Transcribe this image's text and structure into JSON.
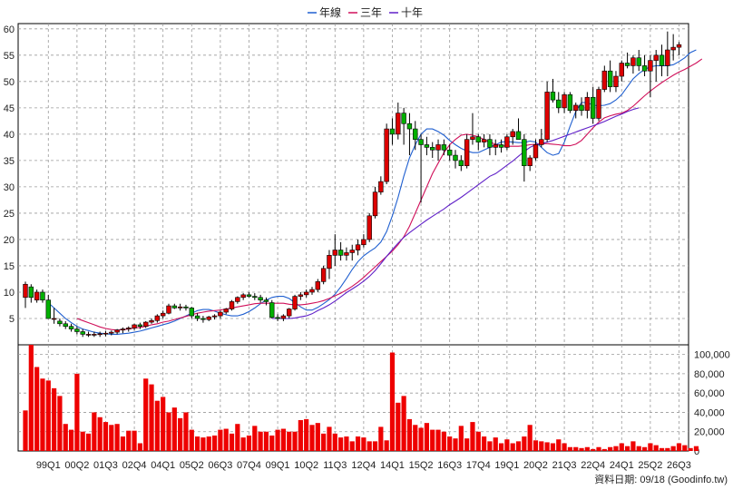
{
  "legend": {
    "items": [
      {
        "label": "年線",
        "color": "#1f5fd0"
      },
      {
        "label": "三年",
        "color": "#d0105a"
      },
      {
        "label": "十年",
        "color": "#6020c8"
      }
    ]
  },
  "footer": {
    "source_label": "資料日期: 09/18 (Goodinfo.tw)"
  },
  "colors": {
    "up": "#dd0000",
    "down": "#00b000",
    "volume": "#ee0000",
    "grid": "#9a9a9a"
  },
  "chart_data": [
    {
      "type": "candlestick",
      "title": "",
      "ylim": [
        0,
        61
      ],
      "y_ticks": [
        5,
        10,
        15,
        20,
        25,
        30,
        35,
        40,
        45,
        50,
        55,
        60
      ],
      "x_tick_labels": [
        "99Q1",
        "00Q2",
        "01Q3",
        "02Q4",
        "04Q1",
        "05Q2",
        "06Q3",
        "07Q4",
        "09Q1",
        "10Q2",
        "11Q3",
        "12Q4",
        "14Q1",
        "15Q2",
        "16Q3",
        "17Q4",
        "19Q1",
        "20Q2",
        "21Q3",
        "22Q4",
        "24Q1",
        "25Q2",
        "26Q3"
      ],
      "x_tick_index": [
        4,
        9,
        14,
        19,
        24,
        29,
        34,
        39,
        44,
        49,
        54,
        59,
        64,
        69,
        74,
        79,
        84,
        89,
        94,
        99,
        104,
        109,
        114
      ],
      "candles": [
        [
          9,
          12,
          7,
          11.5
        ],
        [
          11,
          11.5,
          8,
          9
        ],
        [
          8.5,
          10.5,
          8,
          10
        ],
        [
          10,
          10.5,
          8,
          8.5
        ],
        [
          8.5,
          9.5,
          5,
          5
        ],
        [
          5,
          7,
          4,
          5
        ],
        [
          4.5,
          5,
          3.5,
          4
        ],
        [
          4,
          4.5,
          3,
          3.5
        ],
        [
          3.5,
          4,
          2.5,
          3
        ],
        [
          3,
          3.5,
          2,
          2.5
        ],
        [
          2.5,
          3,
          1.5,
          2
        ],
        [
          2,
          2.5,
          1.5,
          2
        ],
        [
          2,
          2.5,
          1.5,
          2
        ],
        [
          2,
          2.5,
          1.5,
          2.1
        ],
        [
          2.1,
          2.6,
          1.6,
          2.2
        ],
        [
          2.2,
          2.7,
          1.8,
          2.4
        ],
        [
          2.4,
          3,
          2,
          2.8
        ],
        [
          2.8,
          3.3,
          2.2,
          3
        ],
        [
          3,
          3.5,
          2.5,
          3.2
        ],
        [
          3.2,
          4,
          2.8,
          3.8
        ],
        [
          3.8,
          4.2,
          3,
          3.5
        ],
        [
          3.5,
          4.5,
          3.2,
          4.3
        ],
        [
          4.3,
          5,
          4,
          4.6
        ],
        [
          4.6,
          5.8,
          4.2,
          5.5
        ],
        [
          5.5,
          6.5,
          5,
          6
        ],
        [
          6,
          7.8,
          5.8,
          7.4
        ],
        [
          7.4,
          7.8,
          6.8,
          7
        ],
        [
          7,
          7.8,
          6.5,
          7.2
        ],
        [
          7.2,
          7.6,
          6.5,
          7
        ],
        [
          7,
          7.2,
          5,
          5.5
        ],
        [
          5.5,
          6,
          4.5,
          5
        ],
        [
          5,
          5.5,
          4.2,
          4.8
        ],
        [
          4.8,
          5.5,
          4.5,
          5.3
        ],
        [
          5.3,
          5.8,
          4.8,
          5.5
        ],
        [
          5.5,
          6.5,
          5,
          6.2
        ],
        [
          6.2,
          7,
          5.8,
          6.8
        ],
        [
          6.8,
          8.5,
          6.5,
          8.2
        ],
        [
          8.2,
          9.2,
          7.8,
          9
        ],
        [
          9,
          9.8,
          8.5,
          9.5
        ],
        [
          9.5,
          10,
          9,
          9.2
        ],
        [
          9.2,
          9.8,
          8.5,
          9
        ],
        [
          9,
          9.5,
          8,
          8.5
        ],
        [
          8.5,
          9,
          7.5,
          8.2
        ],
        [
          8,
          8.5,
          5,
          5.2
        ],
        [
          5.2,
          5.8,
          4.5,
          5
        ],
        [
          5,
          5.8,
          4.5,
          5.5
        ],
        [
          5.5,
          7,
          5,
          6.8
        ],
        [
          6.8,
          9.5,
          6.5,
          9.2
        ],
        [
          9.2,
          10,
          8.5,
          9.5
        ],
        [
          9.5,
          10.5,
          9,
          10
        ],
        [
          10,
          11,
          9.5,
          10.5
        ],
        [
          10.5,
          12.5,
          10,
          12
        ],
        [
          12,
          15,
          11.5,
          14.5
        ],
        [
          14.5,
          18,
          12.5,
          17
        ],
        [
          17,
          21,
          15,
          18
        ],
        [
          18,
          19.5,
          16,
          17
        ],
        [
          17,
          18.5,
          16,
          17.5
        ],
        [
          17.5,
          19,
          16,
          18
        ],
        [
          18,
          20,
          17,
          19
        ],
        [
          19,
          21,
          18.5,
          20
        ],
        [
          20,
          25,
          19.5,
          24.5
        ],
        [
          24.5,
          30,
          24,
          29
        ],
        [
          29,
          32,
          28.5,
          31
        ],
        [
          31,
          42,
          30.5,
          41
        ],
        [
          41,
          43,
          38,
          40
        ],
        [
          40,
          46,
          39,
          44
        ],
        [
          44,
          45,
          38,
          42
        ],
        [
          42,
          44,
          36,
          41
        ],
        [
          41,
          42.5,
          37,
          39
        ],
        [
          39,
          40,
          27,
          38
        ],
        [
          38,
          39.5,
          36,
          37.5
        ],
        [
          37.5,
          38.5,
          35.5,
          37
        ],
        [
          37,
          39,
          35,
          38
        ],
        [
          38,
          39,
          36,
          37
        ],
        [
          37,
          38,
          35,
          36
        ],
        [
          36,
          37,
          33.5,
          35
        ],
        [
          35,
          36,
          33,
          34
        ],
        [
          34,
          40,
          33.5,
          39
        ],
        [
          39,
          44,
          38,
          39.5
        ],
        [
          39.5,
          40,
          37,
          38.5
        ],
        [
          38.5,
          40,
          37.5,
          39
        ],
        [
          39,
          40,
          36,
          37.5
        ],
        [
          37.5,
          39,
          36,
          38
        ],
        [
          38,
          39,
          36.5,
          37.5
        ],
        [
          37.5,
          40,
          37,
          39.5
        ],
        [
          39.5,
          41,
          38,
          40.5
        ],
        [
          40.5,
          43,
          39.5,
          39
        ],
        [
          39,
          40,
          31,
          34
        ],
        [
          34,
          36,
          33,
          35.5
        ],
        [
          35.5,
          39,
          35,
          38
        ],
        [
          38,
          41,
          37.5,
          39
        ],
        [
          39,
          50,
          38.5,
          48
        ],
        [
          48,
          50.5,
          46,
          46.5
        ],
        [
          46.5,
          48,
          44,
          45
        ],
        [
          45,
          48,
          44,
          47.5
        ],
        [
          47.5,
          48,
          44,
          44.5
        ],
        [
          44.5,
          46,
          43,
          45.5
        ],
        [
          45.5,
          47,
          43.5,
          44.5
        ],
        [
          44.5,
          48,
          43,
          47
        ],
        [
          47,
          49,
          42,
          43
        ],
        [
          43,
          49,
          42.5,
          48.5
        ],
        [
          48.5,
          53,
          48,
          52
        ],
        [
          52,
          54,
          48,
          49
        ],
        [
          49,
          52,
          48,
          51
        ],
        [
          51,
          54,
          50,
          53.5
        ],
        [
          53.5,
          55.5,
          52.5,
          53
        ],
        [
          53,
          55,
          51.5,
          54.5
        ],
        [
          54.5,
          56,
          52,
          53
        ],
        [
          53,
          55,
          51,
          52
        ],
        [
          52,
          55,
          47,
          54
        ],
        [
          54,
          56,
          50,
          55
        ],
        [
          55,
          57,
          51,
          53
        ],
        [
          53,
          59.5,
          51,
          56
        ],
        [
          56,
          59,
          54,
          56.5
        ],
        [
          56.5,
          57.5,
          55,
          57
        ]
      ],
      "volume": [
        42,
        110,
        87,
        75,
        73,
        65,
        57,
        28,
        22,
        80,
        20,
        18,
        40,
        35,
        30,
        27,
        28,
        15,
        21,
        21,
        8,
        75,
        69,
        52,
        56,
        40,
        45,
        34,
        40,
        22,
        15,
        14,
        15,
        16,
        22,
        23,
        18,
        28,
        14,
        16,
        26,
        20,
        20,
        16,
        22,
        23,
        20,
        20,
        32,
        33,
        27,
        29,
        18,
        25,
        18,
        14,
        15,
        10,
        15,
        14,
        10,
        10,
        25,
        11,
        102,
        50,
        57,
        33,
        27,
        24,
        29,
        22,
        22,
        20,
        15,
        13,
        26,
        13,
        30,
        20,
        15,
        10,
        14,
        8,
        12,
        8,
        10,
        15,
        27,
        11,
        10,
        9,
        8,
        12,
        8,
        4,
        4,
        3,
        4,
        2,
        4,
        2,
        4,
        5,
        8,
        5,
        10,
        5,
        4,
        8,
        6,
        3,
        3,
        5,
        8,
        6,
        3,
        5
      ],
      "volume_ylim": [
        0,
        110000
      ],
      "volume_ticks": [
        0,
        20000,
        40000,
        60000,
        80000,
        100000
      ],
      "volume_tick_labels": [
        "0",
        "20,000",
        "40,000",
        "60,000",
        "80,000",
        "100,000"
      ],
      "series": [
        {
          "name": "年線",
          "type": "line",
          "start_index": 4,
          "values": [
            8,
            7,
            6,
            5,
            4.2,
            3.5,
            3,
            2.7,
            2.4,
            2.2,
            2.1,
            2,
            2,
            2.1,
            2.2,
            2.4,
            2.6,
            2.9,
            3.2,
            3.5,
            3.8,
            4.1,
            4.5,
            5,
            5.5,
            6,
            6.5,
            6.7,
            6.7,
            6.4,
            6,
            5.7,
            5.5,
            5.5,
            5.8,
            6.3,
            7,
            7.8,
            8.5,
            9,
            9.2,
            9.2,
            8.8,
            8,
            7.2,
            6.6,
            6.6,
            7.1,
            7.8,
            8.6,
            9.6,
            11,
            12.6,
            14.3,
            15.8,
            16.9,
            17.7,
            18.4,
            19.5,
            21.5,
            24.5,
            28,
            32,
            35.5,
            38,
            40,
            41,
            41,
            40.5,
            39.8,
            38.8,
            38,
            37.3,
            36.8,
            36.5,
            36.5,
            37,
            37.5,
            38,
            38.5,
            38.6,
            38.5,
            38.4,
            38.4,
            38.7,
            38.5,
            37.5,
            36.5,
            36,
            36.3,
            38.5,
            41.5,
            44.3,
            46,
            46,
            45.5,
            45.4,
            45.5,
            45.8,
            46.5,
            47.5,
            49,
            50.5,
            51.5,
            52.3,
            52.8,
            53,
            53,
            53,
            53.2,
            53.8,
            54.5,
            55.5,
            56
          ]
        },
        {
          "name": "三年",
          "type": "line",
          "start_index": 9,
          "values": [
            5,
            4.6,
            4.2,
            3.8,
            3.4,
            3.1,
            2.9,
            2.8,
            2.9,
            3,
            3.2,
            3.3,
            3.5,
            3.8,
            4,
            4.3,
            4.5,
            4.8,
            5.1,
            5.4,
            5.7,
            6,
            6.2,
            6.4,
            6.5,
            6.6,
            6.8,
            7,
            7.2,
            7.4,
            7.6,
            7.8,
            7.9,
            7.9,
            7.9,
            7.9,
            7.9,
            7.7,
            7.6,
            7.6,
            7.7,
            7.9,
            8.1,
            8.4,
            8.8,
            9.3,
            9.8,
            10.4,
            11.1,
            11.9,
            12.8,
            13.8,
            14.8,
            15.8,
            16.8,
            17.8,
            19,
            20.5,
            22.5,
            25,
            27.5,
            30,
            32.5,
            34.5,
            36.5,
            38,
            39,
            39.8,
            40,
            39.8,
            39.5,
            39,
            38.5,
            38.1,
            37.8,
            37.7,
            37.7,
            37.7,
            37.8,
            38,
            38.1,
            38.2,
            38.2,
            38.1,
            38,
            37.8,
            37.8,
            38.1,
            38.8,
            40,
            41.2,
            42.3,
            43.1,
            43.5,
            43.8,
            44,
            44.5,
            45.3,
            46.3,
            47.3,
            48.2,
            49,
            49.8,
            50.5,
            51.2,
            51.8,
            52.3,
            52.9,
            53.5,
            54.3
          ]
        },
        {
          "name": "十年",
          "type": "line",
          "start_index": 43,
          "values": [
            5,
            5,
            5,
            5,
            5.1,
            5.3,
            5.5,
            5.9,
            6.5,
            7,
            7.6,
            8.3,
            9.1,
            9.9,
            10.6,
            11.3,
            12.1,
            13,
            14.1,
            15.4,
            16.8,
            18.1,
            19.3,
            20.4,
            21.3,
            22.1,
            22.9,
            23.7,
            24.4,
            25.1,
            25.8,
            26.6,
            27.3,
            28,
            28.8,
            29.6,
            30.4,
            31.2,
            32,
            32.5,
            33.3,
            34.1,
            34.9,
            35.8,
            36.7,
            37.5,
            38,
            38.2,
            38.5,
            38.8,
            39.2,
            39.6,
            40,
            40.4,
            40.8,
            41.2,
            41.6,
            42,
            42.4,
            42.9,
            43.4,
            43.8,
            44.3,
            44.7,
            45
          ]
        }
      ]
    }
  ]
}
